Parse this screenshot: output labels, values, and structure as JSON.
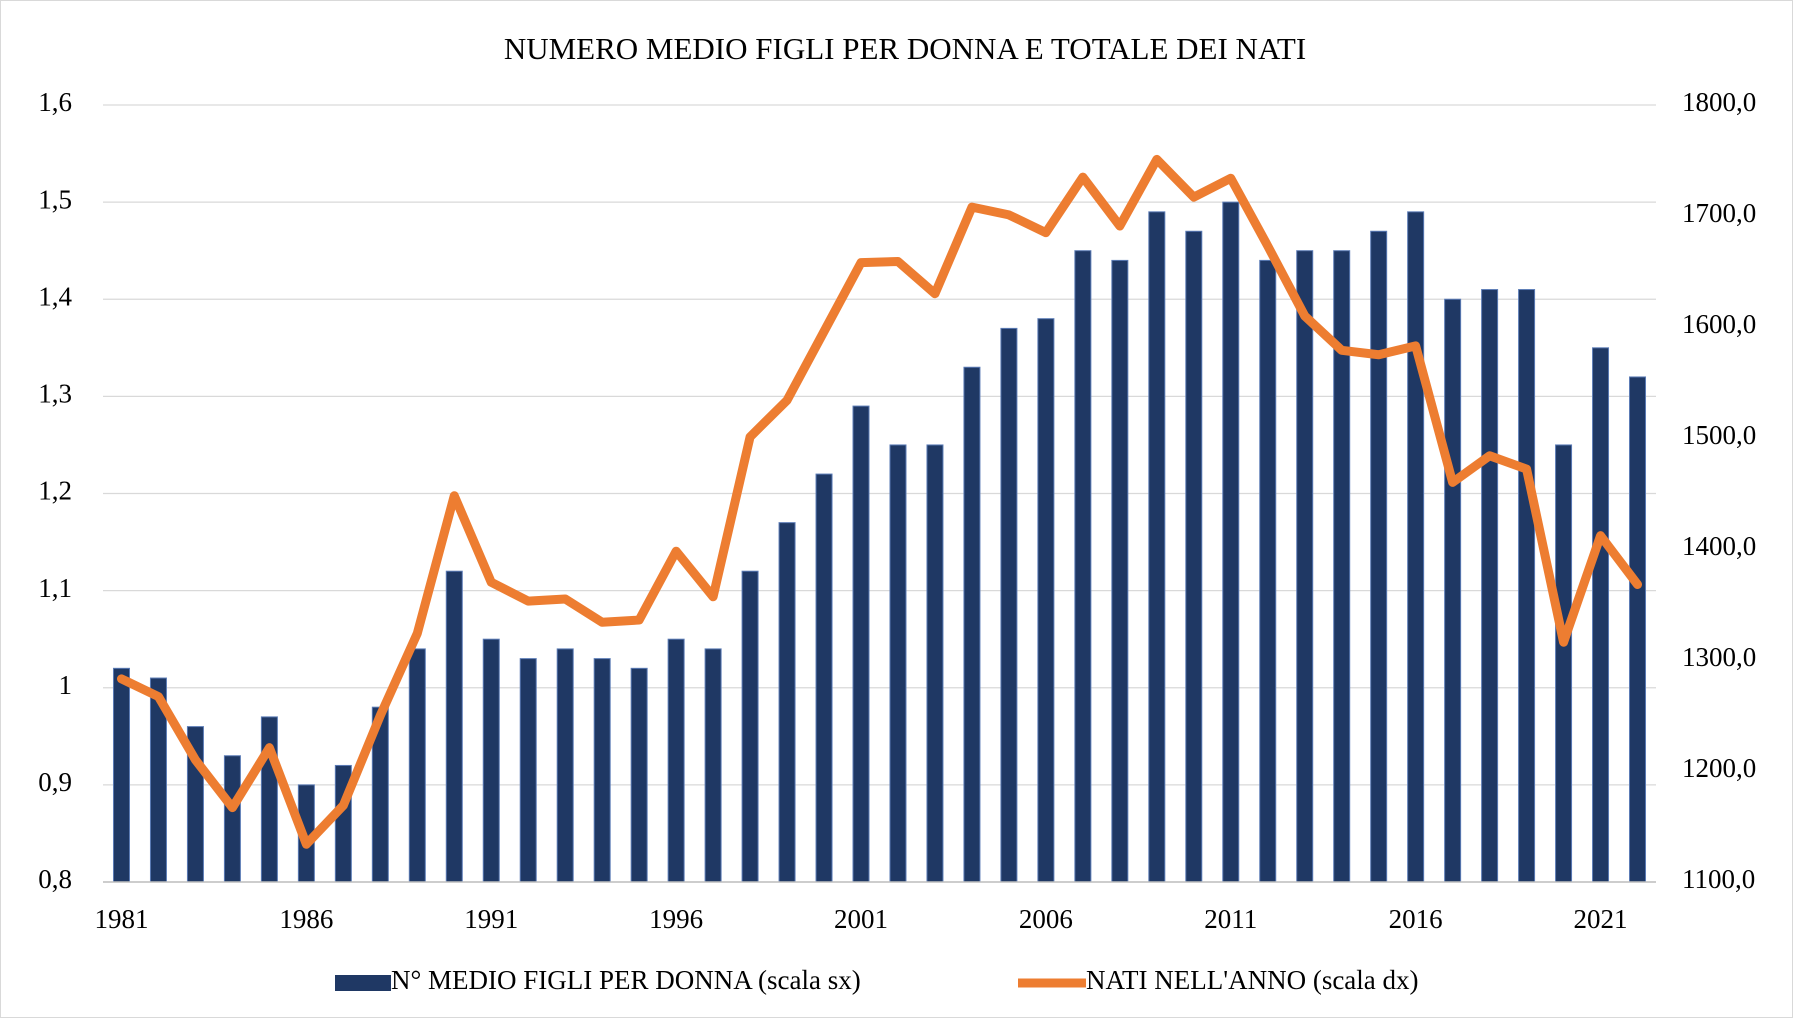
{
  "chart_data": {
    "type": "bar_line",
    "title": "NUMERO MEDIO FIGLI PER DONNA E TOTALE DEI NATI",
    "categories": [
      "1981",
      null,
      null,
      null,
      null,
      "1986",
      null,
      null,
      null,
      null,
      "1991",
      null,
      null,
      null,
      null,
      "1996",
      null,
      null,
      null,
      null,
      "2001",
      null,
      null,
      null,
      null,
      "2006",
      null,
      null,
      null,
      null,
      "2011",
      null,
      null,
      null,
      null,
      "2016",
      null,
      null,
      null,
      null,
      "2021",
      null
    ],
    "series": [
      {
        "name": "N° MEDIO FIGLI PER DONNA (scala sx)",
        "type": "bar",
        "color": "#1f3864",
        "axis": "y",
        "values": [
          1.02,
          1.01,
          0.96,
          0.93,
          0.97,
          0.9,
          0.92,
          0.98,
          1.04,
          1.12,
          1.05,
          1.03,
          1.04,
          1.03,
          1.02,
          1.05,
          1.04,
          1.12,
          1.17,
          1.22,
          1.29,
          1.25,
          1.25,
          1.33,
          1.37,
          1.38,
          1.45,
          1.44,
          1.49,
          1.47,
          1.5,
          1.44,
          1.45,
          1.45,
          1.47,
          1.49,
          1.4,
          1.41,
          1.41,
          1.25,
          1.35,
          1.32
        ]
      },
      {
        "name": "NATI NELL'ANNO (scala dx)",
        "type": "line",
        "color": "#ed7d31",
        "axis": "y2",
        "values": [
          1283,
          1267,
          1210,
          1167,
          1221,
          1134,
          1169,
          1250,
          1324,
          1448,
          1370,
          1353,
          1355,
          1334,
          1336,
          1398,
          1357,
          1501,
          1534,
          1596,
          1658,
          1659,
          1630,
          1708,
          1701,
          1685,
          1735,
          1691,
          1751,
          1717,
          1734,
          1673,
          1610,
          1579,
          1575,
          1583,
          1460,
          1484,
          1472,
          1316,
          1412,
          1368
        ]
      }
    ],
    "ylim": [
      0.8,
      1.6
    ],
    "yticks": [
      {
        "value": 0.8,
        "label": "0,8"
      },
      {
        "value": 0.9,
        "label": "0,9"
      },
      1,
      {
        "value": 1.1,
        "label": "1,1"
      },
      {
        "value": 1.2,
        "label": "1,2"
      },
      {
        "value": 1.3,
        "label": "1,3"
      },
      {
        "value": 1.4,
        "label": "1,4"
      },
      {
        "value": 1.5,
        "label": "1,5"
      },
      {
        "value": 1.6,
        "label": "1,6"
      }
    ],
    "y2lim": [
      1100,
      1800
    ],
    "y2ticks": [
      {
        "value": 1100,
        "label": "1100,0"
      },
      {
        "value": 1200,
        "label": "1200,0"
      },
      {
        "value": 1300,
        "label": "1300,0"
      },
      {
        "value": 1400,
        "label": "1400,0"
      },
      {
        "value": 1500,
        "label": "1500,0"
      },
      {
        "value": 1600,
        "label": "1600,0"
      },
      {
        "value": 1700,
        "label": "1700,0"
      },
      {
        "value": 1800,
        "label": "1800,0"
      }
    ],
    "grid": true,
    "legend": "bottom"
  }
}
